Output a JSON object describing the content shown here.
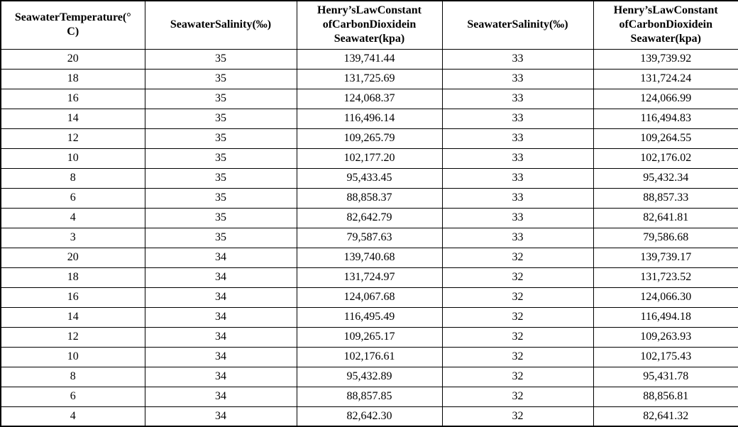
{
  "table": {
    "headers": [
      "SeawaterTemperature(° C)",
      "SeawaterSalinity(‰)",
      "Henry’sLawConstant ofCarbonDioxidein Seawater(kpa)",
      "SeawaterSalinity(‰)",
      "Henry’sLawConstant ofCarbonDioxidein Seawater(kpa)"
    ],
    "rows": [
      [
        "20",
        "35",
        "139,741.44",
        "33",
        "139,739.92"
      ],
      [
        "18",
        "35",
        "131,725.69",
        "33",
        "131,724.24"
      ],
      [
        "16",
        "35",
        "124,068.37",
        "33",
        "124,066.99"
      ],
      [
        "14",
        "35",
        "116,496.14",
        "33",
        "116,494.83"
      ],
      [
        "12",
        "35",
        "109,265.79",
        "33",
        "109,264.55"
      ],
      [
        "10",
        "35",
        "102,177.20",
        "33",
        "102,176.02"
      ],
      [
        "8",
        "35",
        "95,433.45",
        "33",
        "95,432.34"
      ],
      [
        "6",
        "35",
        "88,858.37",
        "33",
        "88,857.33"
      ],
      [
        "4",
        "35",
        "82,642.79",
        "33",
        "82,641.81"
      ],
      [
        "3",
        "35",
        "79,587.63",
        "33",
        "79,586.68"
      ],
      [
        "20",
        "34",
        "139,740.68",
        "32",
        "139,739.17"
      ],
      [
        "18",
        "34",
        "131,724.97",
        "32",
        "131,723.52"
      ],
      [
        "16",
        "34",
        "124,067.68",
        "32",
        "124,066.30"
      ],
      [
        "14",
        "34",
        "116,495.49",
        "32",
        "116,494.18"
      ],
      [
        "12",
        "34",
        "109,265.17",
        "32",
        "109,263.93"
      ],
      [
        "10",
        "34",
        "102,176.61",
        "32",
        "102,175.43"
      ],
      [
        "8",
        "34",
        "95,432.89",
        "32",
        "95,431.78"
      ],
      [
        "6",
        "34",
        "88,857.85",
        "32",
        "88,856.81"
      ],
      [
        "4",
        "34",
        "82,642.30",
        "32",
        "82,641.32"
      ]
    ],
    "colors": {
      "border": "#000000",
      "text": "#000000",
      "background": "#ffffff"
    }
  }
}
